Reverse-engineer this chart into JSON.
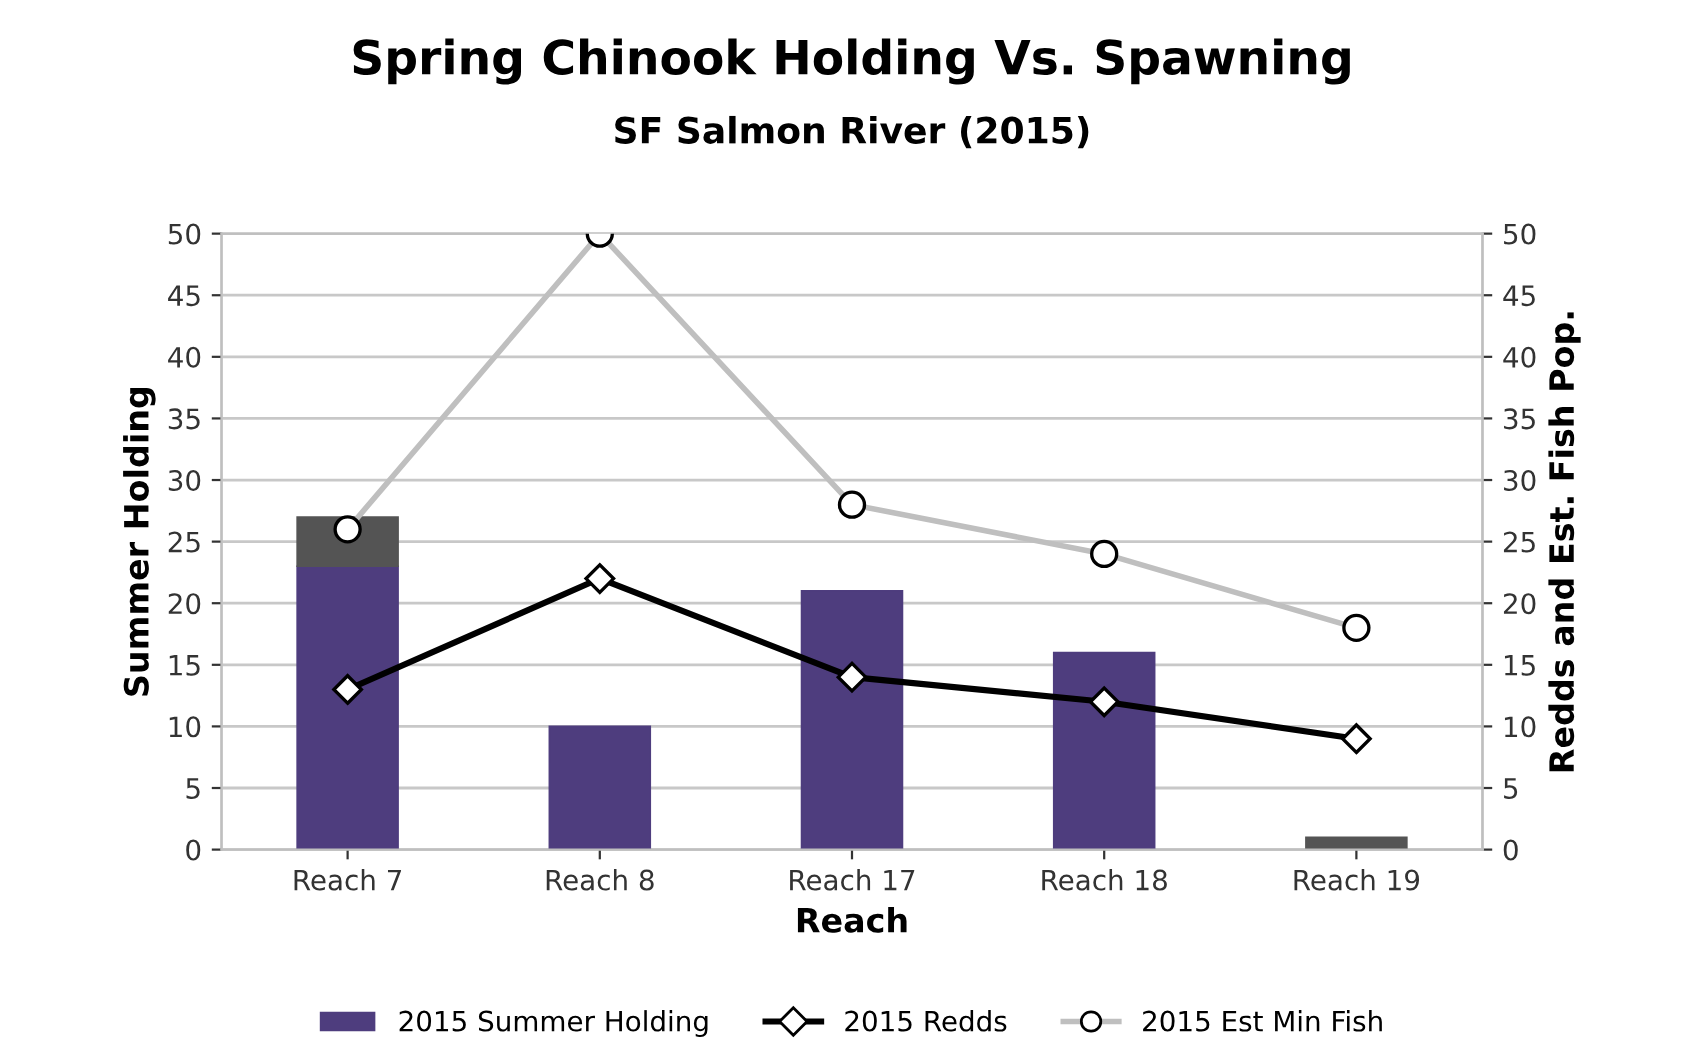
{
  "chart_data": {
    "type": "bar",
    "title": "Spring Chinook Holding Vs. Spawning",
    "subtitle": "SF Salmon River (2015)",
    "xlabel": "Reach",
    "ylabel": "Summer Holding",
    "y2label": "Redds and Est. Fish Pop.",
    "categories": [
      "Reach 7",
      "Reach 8",
      "Reach 17",
      "Reach 18",
      "Reach 19"
    ],
    "stacked": true,
    "series": [
      {
        "name": "2015 Summer Holding",
        "color": "#4e3d7e",
        "values": [
          23,
          10,
          21,
          16,
          0
        ]
      },
      {
        "color": "#545454",
        "values": [
          4,
          0,
          0,
          0,
          1
        ]
      },
      {
        "name": "2015 Redds",
        "type": "line",
        "color": "#000000",
        "marker": "diamond",
        "axis": "y2",
        "values": [
          13,
          22,
          14,
          12,
          9
        ]
      },
      {
        "name": "2015 Est Min Fish",
        "type": "line",
        "color": "#bfbfbf",
        "marker": "circle",
        "axis": "y2",
        "values": [
          26,
          50,
          28,
          24,
          18
        ]
      }
    ],
    "ylim": [
      0,
      50
    ],
    "yticks": [
      0,
      5,
      10,
      15,
      20,
      25,
      30,
      35,
      40,
      45,
      50
    ],
    "y2lim": [
      0,
      50
    ],
    "y2ticks": [
      0,
      5,
      10,
      15,
      20,
      25,
      30,
      35,
      40,
      45,
      50
    ],
    "grid": "y",
    "legend": "bottom"
  }
}
